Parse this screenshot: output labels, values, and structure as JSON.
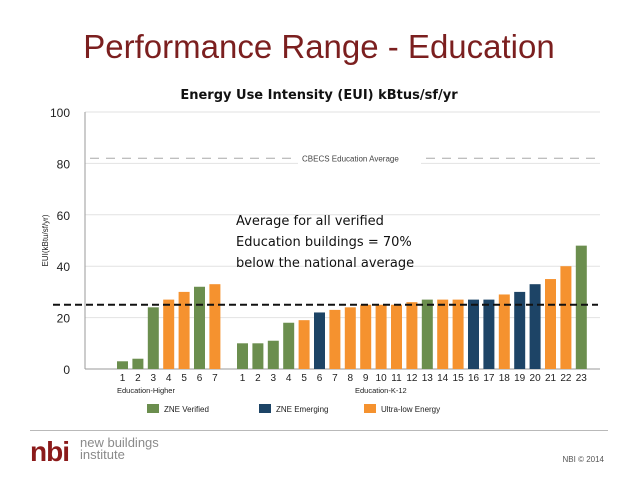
{
  "slide": {
    "title": "Performance Range - Education",
    "footer_logo_mark": "nbi",
    "footer_logo_text_line1": "new buildings",
    "footer_logo_text_line2": "institute",
    "copyright": "NBI © 2014"
  },
  "chart_data": {
    "type": "bar",
    "title": "Energy Use Intensity (EUI) kBtus/sf/yr",
    "ylabel": "EUI(kBtu/sf/yr)",
    "ylim": [
      0,
      100
    ],
    "yticks": [
      0,
      20,
      40,
      60,
      80,
      100
    ],
    "reference_lines": [
      {
        "label": "CBECS Education Average",
        "value": 82,
        "style": "dashed-gray"
      },
      {
        "label": "",
        "value": 25,
        "style": "dashed-black"
      }
    ],
    "annotation": [
      "Average for all verified",
      "Education buildings = 70%",
      "below the national average"
    ],
    "legend": [
      {
        "name": "ZNE Verified",
        "color": "#6b8e4e"
      },
      {
        "name": "ZNE Emerging",
        "color": "#1d4466"
      },
      {
        "name": "Ultra-low Energy",
        "color": "#f5922f"
      }
    ],
    "legend_position": "bottom",
    "groups": [
      {
        "name": "Education-Higher",
        "categories": [
          "1",
          "2",
          "3",
          "4",
          "5",
          "6",
          "7"
        ],
        "values": [
          3,
          4,
          24,
          27,
          30,
          32,
          33
        ],
        "status": [
          "verified",
          "verified",
          "verified",
          "ultra",
          "ultra",
          "verified",
          "ultra"
        ]
      },
      {
        "name": "Education-K-12",
        "categories": [
          "1",
          "2",
          "3",
          "4",
          "5",
          "6",
          "7",
          "8",
          "9",
          "10",
          "11",
          "12",
          "13",
          "14",
          "15",
          "16",
          "17",
          "18",
          "19",
          "20",
          "21",
          "22",
          "23"
        ],
        "values": [
          10,
          10,
          11,
          18,
          19,
          22,
          23,
          24,
          25,
          25,
          25,
          26,
          27,
          27,
          27,
          27,
          27,
          29,
          30,
          33,
          35,
          40,
          48
        ],
        "status": [
          "verified",
          "verified",
          "verified",
          "verified",
          "ultra",
          "emerging",
          "ultra",
          "ultra",
          "ultra",
          "ultra",
          "ultra",
          "ultra",
          "verified",
          "ultra",
          "ultra",
          "emerging",
          "emerging",
          "ultra",
          "emerging",
          "emerging",
          "ultra",
          "ultra",
          "verified"
        ]
      }
    ],
    "colors": {
      "verified": "#6b8e4e",
      "emerging": "#1d4466",
      "ultra": "#f5922f"
    }
  }
}
